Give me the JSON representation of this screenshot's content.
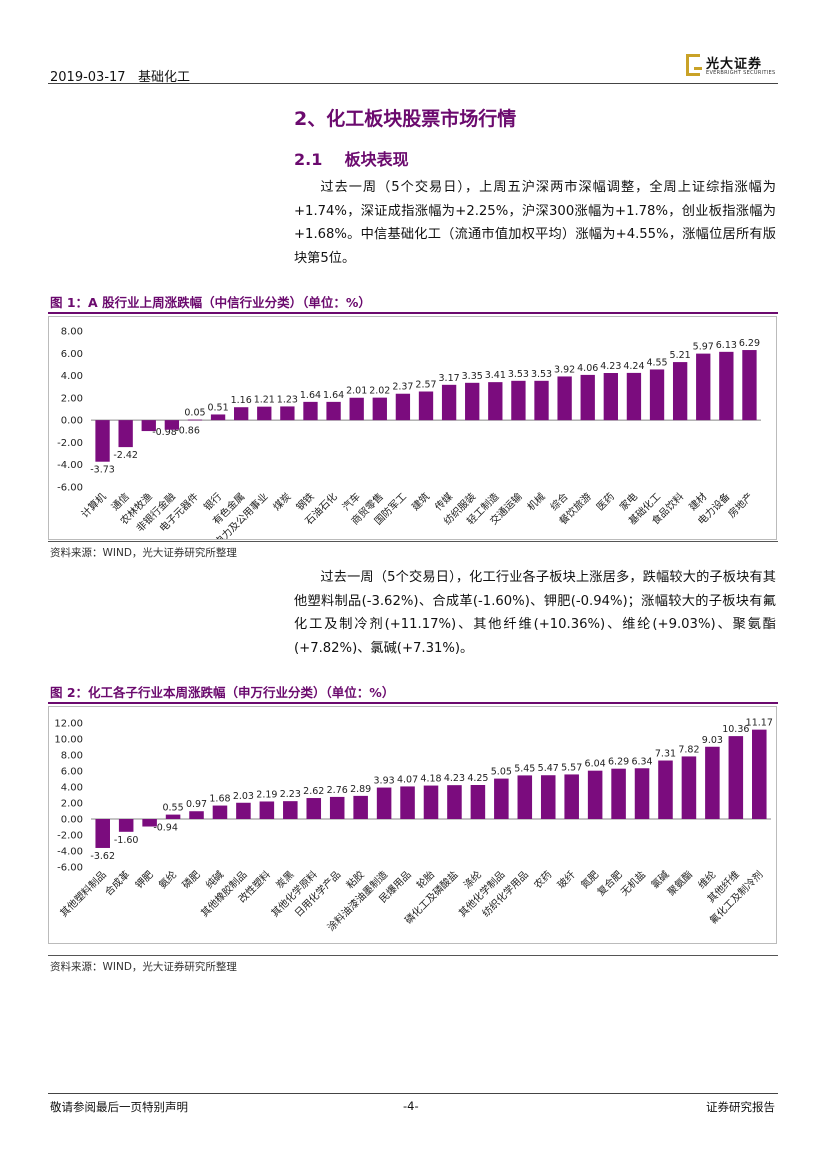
{
  "header": {
    "date": "2019-03-17",
    "sector": "基础化工",
    "logo_name": "光大证券",
    "logo_sub": "EVERBRIGHT SECURITIES",
    "logo_color": "#c9a227"
  },
  "section": {
    "heading": "2、化工板块股票市场行情",
    "subheading_num": "2.1",
    "subheading": "板块表现",
    "paragraph1": "过去一周（5个交易日），上周五沪深两市深幅调整，全周上证综指涨幅为+1.74%，深证成指涨幅为+2.25%，沪深300涨幅为+1.78%，创业板指涨幅为+1.68%。中信基础化工（流通市值加权平均）涨幅为+4.55%，涨幅位居所有版块第5位。",
    "paragraph2": "过去一周（5个交易日），化工行业各子板块上涨居多，跌幅较大的子板块有其他塑料制品(-3.62%)、合成革(-1.60%)、钾肥(-0.94%)；涨幅较大的子板块有氟化工及制冷剂(+11.17%)、其他纤维(+10.36%)、维纶(+9.03%)、聚氨酯(+7.82%)、氯碱(+7.31%)。"
  },
  "figure1": {
    "title": "图 1：A 股行业上周涨跌幅（中信行业分类）（单位：%）",
    "source": "资料来源：WIND，光大证券研究所整理"
  },
  "figure2": {
    "title": "图 2：化工各子行业本周涨跌幅（申万行业分类）（单位：%）",
    "source": "资料来源：WIND，光大证券研究所整理"
  },
  "chart_data": [
    {
      "type": "bar",
      "color": "#7b0c7e",
      "categories": [
        "计算机",
        "通信",
        "农林牧渔",
        "非银行金融",
        "电子元器件",
        "银行",
        "有色金属",
        "电力及公用事业",
        "煤炭",
        "钢铁",
        "石油石化",
        "汽车",
        "商贸零售",
        "国防军工",
        "建筑",
        "传媒",
        "纺织服装",
        "轻工制造",
        "交通运输",
        "机械",
        "综合",
        "餐饮旅游",
        "医药",
        "家电",
        "基础化工",
        "食品饮料",
        "建材",
        "电力设备",
        "房地产"
      ],
      "values": [
        -3.73,
        -2.42,
        -0.98,
        -0.86,
        0.05,
        0.51,
        1.16,
        1.21,
        1.23,
        1.64,
        1.64,
        2.01,
        2.02,
        2.37,
        2.57,
        3.17,
        3.35,
        3.41,
        3.53,
        3.53,
        3.92,
        4.06,
        4.23,
        4.24,
        4.55,
        5.21,
        5.97,
        6.13,
        6.29
      ],
      "labels": [
        "-3.73",
        "-2.42",
        "-0.98",
        "-0.86",
        "0.05",
        "0.51",
        "1.16",
        "1.21",
        "1.23",
        "1.64",
        "1.64",
        "2.01",
        "2.02",
        "2.37",
        "2.57",
        "3.17",
        "3.35",
        "3.41",
        "3.53",
        "3.53",
        "3.92",
        "4.06",
        "4.23",
        "4.24",
        "4.55",
        "5.21",
        "5.97",
        "6.13",
        "6.29"
      ],
      "yticks": [
        "-6.00",
        "-4.00",
        "-2.00",
        "0.00",
        "2.00",
        "4.00",
        "6.00",
        "8.00"
      ],
      "ylim": [
        -6,
        8
      ],
      "grid": false,
      "legend": "none"
    },
    {
      "type": "bar",
      "color": "#7b0c7e",
      "categories": [
        "其他塑料制品",
        "合成革",
        "钾肥",
        "氨纶",
        "磷肥",
        "纯碱",
        "其他橡胶制品",
        "改性塑料",
        "炭黑",
        "其他化学原料",
        "日用化学产品",
        "粘胶",
        "涂料油漆油墨制造",
        "民爆用品",
        "轮胎",
        "磷化工及磷酸盐",
        "涤纶",
        "其他化学制品",
        "纺织化学用品",
        "农药",
        "玻纤",
        "氮肥",
        "复合肥",
        "无机盐",
        "氯碱",
        "聚氨酯",
        "维纶",
        "其他纤维",
        "氟化工及制冷剂"
      ],
      "values": [
        -3.62,
        -1.6,
        -0.94,
        0.55,
        0.97,
        1.68,
        2.03,
        2.19,
        2.23,
        2.62,
        2.76,
        2.89,
        3.93,
        4.07,
        4.18,
        4.23,
        4.25,
        5.05,
        5.45,
        5.47,
        5.57,
        6.04,
        6.29,
        6.34,
        7.31,
        7.82,
        9.03,
        10.36,
        11.17
      ],
      "labels": [
        "-3.62",
        "-1.60",
        "-0.94",
        "0.55",
        "0.97",
        "1.68",
        "2.03",
        "2.19",
        "2.23",
        "2.62",
        "2.76",
        "2.89",
        "3.93",
        "4.07",
        "4.18",
        "4.23",
        "4.25",
        "5.05",
        "5.45",
        "5.47",
        "5.57",
        "6.04",
        "6.29",
        "6.34",
        "7.31",
        "7.82",
        "9.03",
        "10.36",
        "11.17"
      ],
      "yticks": [
        "-6.00",
        "-4.00",
        "-2.00",
        "0.00",
        "2.00",
        "4.00",
        "6.00",
        "8.00",
        "10.00",
        "12.00"
      ],
      "ylim": [
        -6,
        12
      ],
      "grid": false,
      "legend": "none"
    }
  ],
  "footer": {
    "disclaimer": "敬请参阅最后一页特别声明",
    "page": "-4-",
    "report_type": "证券研究报告"
  }
}
